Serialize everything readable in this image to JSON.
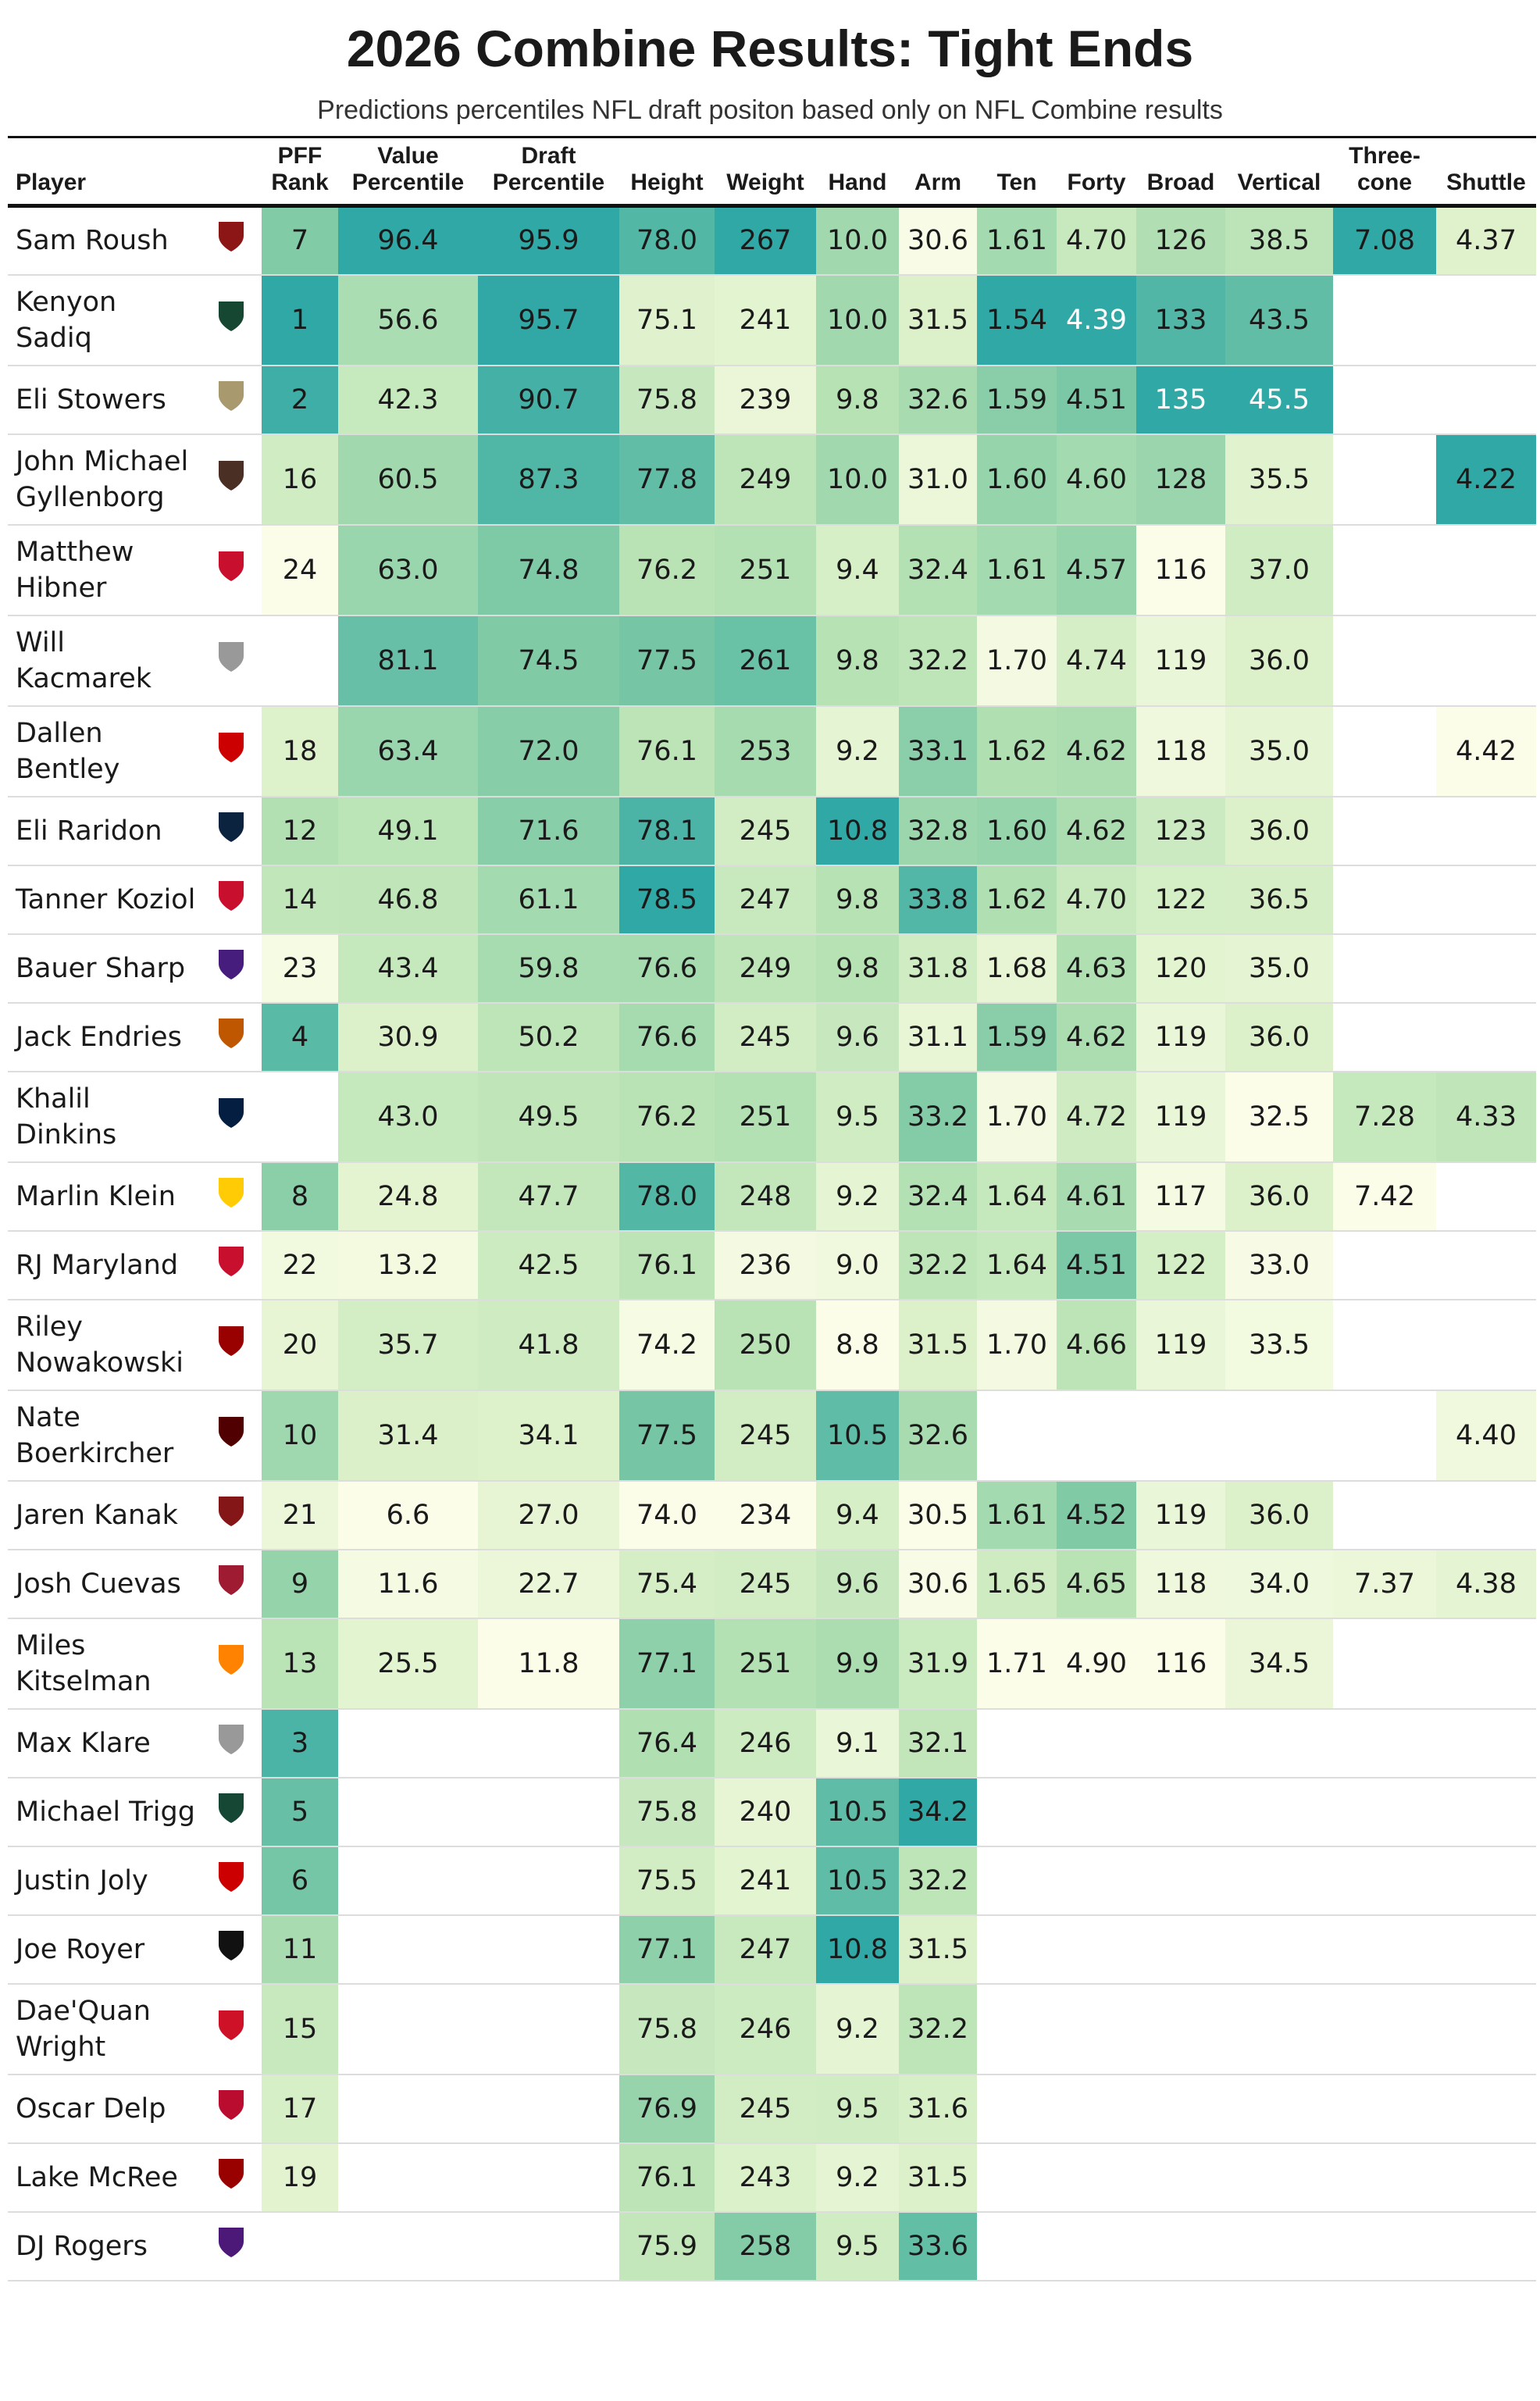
{
  "header": {
    "title": "2026 Combine Results: Tight Ends",
    "subtitle": "Predictions percentiles NFL draft positon based only on NFL Combine results"
  },
  "table": {
    "columns": [
      "Player",
      "PFF Rank",
      "Value Percentile",
      "Draft Percentile",
      "Height",
      "Weight",
      "Hand",
      "Arm",
      "Ten",
      "Forty",
      "Broad",
      "Vertical",
      "Three-cone",
      "Shuttle"
    ],
    "rows": [
      {
        "player": "Sam Roush",
        "values": [
          "7",
          "96.4",
          "95.9",
          "78.0",
          "267",
          "10.0",
          "30.6",
          "1.61",
          "4.70",
          "126",
          "38.5",
          "7.08",
          "4.37"
        ]
      },
      {
        "player": "Kenyon Sadiq",
        "values": [
          "1",
          "56.6",
          "95.7",
          "75.1",
          "241",
          "10.0",
          "31.5",
          "1.54",
          "4.39",
          "133",
          "43.5",
          null,
          null
        ]
      },
      {
        "player": "Eli Stowers",
        "values": [
          "2",
          "42.3",
          "90.7",
          "75.8",
          "239",
          "9.8",
          "32.6",
          "1.59",
          "4.51",
          "135",
          "45.5",
          null,
          null
        ]
      },
      {
        "player": "John Michael Gyllenborg",
        "values": [
          "16",
          "60.5",
          "87.3",
          "77.8",
          "249",
          "10.0",
          "31.0",
          "1.60",
          "4.60",
          "128",
          "35.5",
          null,
          "4.22"
        ]
      },
      {
        "player": "Matthew Hibner",
        "values": [
          "24",
          "63.0",
          "74.8",
          "76.2",
          "251",
          "9.4",
          "32.4",
          "1.61",
          "4.57",
          "116",
          "37.0",
          null,
          null
        ]
      },
      {
        "player": "Will Kacmarek",
        "values": [
          null,
          "81.1",
          "74.5",
          "77.5",
          "261",
          "9.8",
          "32.2",
          "1.70",
          "4.74",
          "119",
          "36.0",
          null,
          null
        ]
      },
      {
        "player": "Dallen Bentley",
        "values": [
          "18",
          "63.4",
          "72.0",
          "76.1",
          "253",
          "9.2",
          "33.1",
          "1.62",
          "4.62",
          "118",
          "35.0",
          null,
          "4.42"
        ]
      },
      {
        "player": "Eli Raridon",
        "values": [
          "12",
          "49.1",
          "71.6",
          "78.1",
          "245",
          "10.8",
          "32.8",
          "1.60",
          "4.62",
          "123",
          "36.0",
          null,
          null
        ]
      },
      {
        "player": "Tanner Koziol",
        "values": [
          "14",
          "46.8",
          "61.1",
          "78.5",
          "247",
          "9.8",
          "33.8",
          "1.62",
          "4.70",
          "122",
          "36.5",
          null,
          null
        ]
      },
      {
        "player": "Bauer Sharp",
        "values": [
          "23",
          "43.4",
          "59.8",
          "76.6",
          "249",
          "9.8",
          "31.8",
          "1.68",
          "4.63",
          "120",
          "35.0",
          null,
          null
        ]
      },
      {
        "player": "Jack Endries",
        "values": [
          "4",
          "30.9",
          "50.2",
          "76.6",
          "245",
          "9.6",
          "31.1",
          "1.59",
          "4.62",
          "119",
          "36.0",
          null,
          null
        ]
      },
      {
        "player": "Khalil Dinkins",
        "values": [
          null,
          "43.0",
          "49.5",
          "76.2",
          "251",
          "9.5",
          "33.2",
          "1.70",
          "4.72",
          "119",
          "32.5",
          "7.28",
          "4.33"
        ]
      },
      {
        "player": "Marlin Klein",
        "values": [
          "8",
          "24.8",
          "47.7",
          "78.0",
          "248",
          "9.2",
          "32.4",
          "1.64",
          "4.61",
          "117",
          "36.0",
          "7.42",
          null
        ]
      },
      {
        "player": "RJ Maryland",
        "values": [
          "22",
          "13.2",
          "42.5",
          "76.1",
          "236",
          "9.0",
          "32.2",
          "1.64",
          "4.51",
          "122",
          "33.0",
          null,
          null
        ]
      },
      {
        "player": "Riley Nowakowski",
        "values": [
          "20",
          "35.7",
          "41.8",
          "74.2",
          "250",
          "8.8",
          "31.5",
          "1.70",
          "4.66",
          "119",
          "33.5",
          null,
          null
        ]
      },
      {
        "player": "Nate Boerkircher",
        "values": [
          "10",
          "31.4",
          "34.1",
          "77.5",
          "245",
          "10.5",
          "32.6",
          null,
          null,
          null,
          null,
          null,
          "4.40"
        ]
      },
      {
        "player": "Jaren Kanak",
        "values": [
          "21",
          "6.6",
          "27.0",
          "74.0",
          "234",
          "9.4",
          "30.5",
          "1.61",
          "4.52",
          "119",
          "36.0",
          null,
          null
        ]
      },
      {
        "player": "Josh Cuevas",
        "values": [
          "9",
          "11.6",
          "22.7",
          "75.4",
          "245",
          "9.6",
          "30.6",
          "1.65",
          "4.65",
          "118",
          "34.0",
          "7.37",
          "4.38"
        ]
      },
      {
        "player": "Miles Kitselman",
        "values": [
          "13",
          "25.5",
          "11.8",
          "77.1",
          "251",
          "9.9",
          "31.9",
          "1.71",
          "4.90",
          "116",
          "34.5",
          null,
          null
        ]
      },
      {
        "player": "Max Klare",
        "values": [
          "3",
          null,
          null,
          "76.4",
          "246",
          "9.1",
          "32.1",
          null,
          null,
          null,
          null,
          null,
          null
        ]
      },
      {
        "player": "Michael Trigg",
        "values": [
          "5",
          null,
          null,
          "75.8",
          "240",
          "10.5",
          "34.2",
          null,
          null,
          null,
          null,
          null,
          null
        ]
      },
      {
        "player": "Justin Joly",
        "values": [
          "6",
          null,
          null,
          "75.5",
          "241",
          "10.5",
          "32.2",
          null,
          null,
          null,
          null,
          null,
          null
        ]
      },
      {
        "player": "Joe Royer",
        "values": [
          "11",
          null,
          null,
          "77.1",
          "247",
          "10.8",
          "31.5",
          null,
          null,
          null,
          null,
          null,
          null
        ]
      },
      {
        "player": "Dae'Quan Wright",
        "values": [
          "15",
          null,
          null,
          "75.8",
          "246",
          "9.2",
          "32.2",
          null,
          null,
          null,
          null,
          null,
          null
        ]
      },
      {
        "player": "Oscar Delp",
        "values": [
          "17",
          null,
          null,
          "76.9",
          "245",
          "9.5",
          "31.6",
          null,
          null,
          null,
          null,
          null,
          null
        ]
      },
      {
        "player": "Lake McRee",
        "values": [
          "19",
          null,
          null,
          "76.1",
          "243",
          "9.2",
          "31.5",
          null,
          null,
          null,
          null,
          null,
          null
        ]
      },
      {
        "player": "DJ Rogers",
        "values": [
          null,
          null,
          null,
          "75.9",
          "258",
          "9.5",
          "33.6",
          null,
          null,
          null,
          null,
          null,
          null
        ]
      }
    ]
  }
}
